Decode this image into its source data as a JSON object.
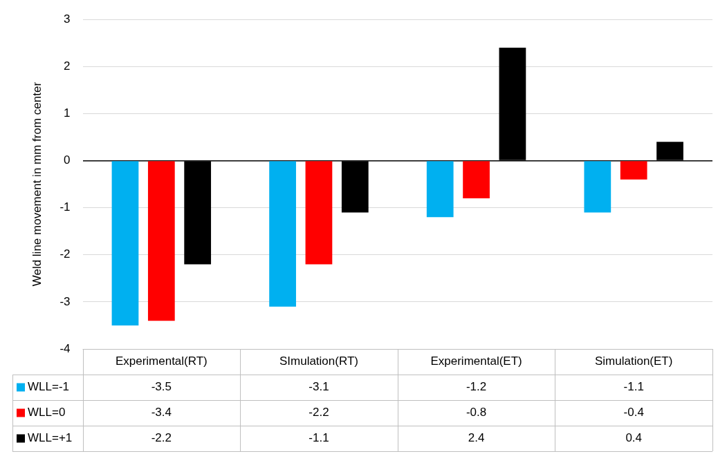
{
  "chart_data": {
    "type": "bar",
    "ylabel": "Weld line movement in mm from center",
    "categories": [
      "Experimental(RT)",
      "SImulation(RT)",
      "Experimental(ET)",
      "Simulation(ET)"
    ],
    "series": [
      {
        "name": "WLL=-1",
        "color": "#00b0f0",
        "values": [
          -3.5,
          -3.1,
          -1.2,
          -1.1
        ]
      },
      {
        "name": "WLL=0",
        "color": "#ff0000",
        "values": [
          -3.4,
          -2.2,
          -0.8,
          -0.4
        ]
      },
      {
        "name": "WLL=+1",
        "color": "#000000",
        "values": [
          -2.2,
          -1.1,
          2.4,
          0.4
        ]
      }
    ],
    "ylim": [
      -4,
      3
    ],
    "yticks": [
      -4,
      -3,
      -2,
      -1,
      0,
      1,
      2,
      3
    ],
    "grid": "y",
    "legend": "bottom",
    "data_labels": true
  }
}
